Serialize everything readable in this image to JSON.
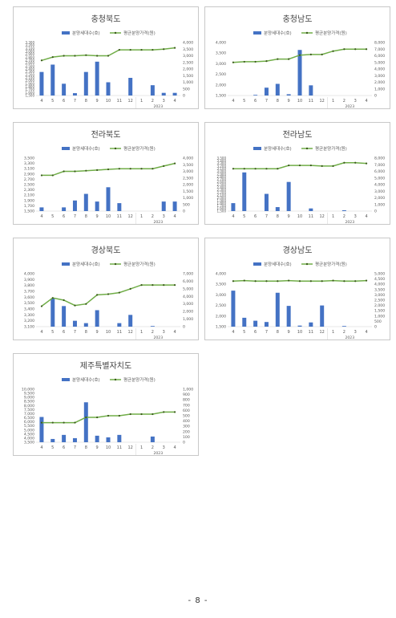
{
  "page": {
    "number_text": "- 8 -"
  },
  "legend": {
    "bar": "분양세대수(호)",
    "line": "평균분양가격(원)"
  },
  "colors": {
    "bar": "#4472c4",
    "line": "#70ad47",
    "marker": "#3a5a1a",
    "text": "#595959",
    "title": "#404040"
  },
  "chart_data": [
    {
      "type": "bar+line",
      "title": "충청북도",
      "categories": [
        "4",
        "5",
        "6",
        "7",
        "8",
        "9",
        "10",
        "11",
        "12",
        "1",
        "2",
        "3",
        "4"
      ],
      "group_label": "2023",
      "y_left": {
        "ylim": [
          1500,
          3300
        ],
        "ticks": [
          "1,500",
          "1,600",
          "1,700",
          "1,800",
          "1,900",
          "2,000",
          "2,100",
          "2,200",
          "2,300",
          "2,400",
          "2,500",
          "2,600",
          "2,700",
          "2,800",
          "2,900",
          "3,000",
          "3,100",
          "3,200",
          "3,300"
        ]
      },
      "y_right": {
        "ylim": [
          0,
          4000
        ],
        "ticks": [
          "0",
          "500",
          "1,000",
          "1,500",
          "2,000",
          "2,500",
          "3,000",
          "3,500",
          "4,000"
        ]
      },
      "series": [
        {
          "name": "분양세대수(호)",
          "axis": "left",
          "values": [
            2300,
            2550,
            1900,
            1580,
            2300,
            2650,
            1950,
            null,
            2100,
            null,
            1850,
            1590,
            1590
          ]
        },
        {
          "name": "평균분양가격(원)",
          "axis": "right",
          "values": [
            2650,
            2900,
            3000,
            3000,
            3050,
            3000,
            3000,
            3450,
            3450,
            3450,
            3450,
            3500,
            3600
          ]
        }
      ]
    },
    {
      "type": "bar+line",
      "title": "충청남도",
      "categories": [
        "4",
        "5",
        "6",
        "7",
        "8",
        "9",
        "10",
        "11",
        "12",
        "1",
        "2",
        "3",
        "4"
      ],
      "group_label": "2023",
      "y_left": {
        "ylim": [
          1500,
          4000
        ],
        "ticks": [
          "1,500",
          "2,000",
          "2,500",
          "3,000",
          "3,500",
          "4,000"
        ]
      },
      "y_right": {
        "ylim": [
          0,
          8000
        ],
        "ticks": [
          "0",
          "1,000",
          "2,000",
          "3,000",
          "4,000",
          "5,000",
          "6,000",
          "7,000",
          "8,000"
        ]
      },
      "series": [
        {
          "name": "분양세대수(호)",
          "axis": "left",
          "values": [
            null,
            null,
            1530,
            1870,
            2050,
            1560,
            3650,
            1980,
            null,
            null,
            null,
            null,
            null
          ]
        },
        {
          "name": "평균분양가격(원)",
          "axis": "right",
          "values": [
            5000,
            5100,
            5100,
            5200,
            5500,
            5500,
            6100,
            6200,
            6200,
            6700,
            7000,
            7000,
            7000
          ]
        }
      ]
    },
    {
      "type": "bar+line",
      "title": "전라북도",
      "categories": [
        "4",
        "5",
        "6",
        "7",
        "8",
        "9",
        "10",
        "11",
        "12",
        "1",
        "2",
        "3",
        "4"
      ],
      "group_label": "2023",
      "y_left": {
        "ylim": [
          1500,
          3500
        ],
        "ticks": [
          "1,500",
          "1,700",
          "1,900",
          "2,100",
          "2,300",
          "2,500",
          "2,700",
          "2,900",
          "3,100",
          "3,300",
          "3,500"
        ]
      },
      "y_right": {
        "ylim": [
          0,
          4000
        ],
        "ticks": [
          "0",
          "500",
          "1,000",
          "1,500",
          "2,000",
          "2,500",
          "3,000",
          "3,500",
          "4,000"
        ]
      },
      "series": [
        {
          "name": "분양세대수(호)",
          "axis": "left",
          "values": [
            1640,
            null,
            1640,
            1900,
            2150,
            1860,
            2400,
            1800,
            null,
            null,
            null,
            1860,
            1860
          ]
        },
        {
          "name": "평균분양가격(원)",
          "axis": "right",
          "values": [
            2700,
            2700,
            3000,
            3000,
            3050,
            3100,
            3150,
            3200,
            3200,
            3200,
            3200,
            3400,
            3600
          ]
        }
      ]
    },
    {
      "type": "bar+line",
      "title": "전라남도",
      "categories": [
        "4",
        "5",
        "6",
        "7",
        "8",
        "9",
        "10",
        "11",
        "12",
        "1",
        "2",
        "3",
        "4"
      ],
      "group_label": "2023",
      "y_left": {
        "ylim": [
          1500,
          3500
        ],
        "ticks": [
          "1,500",
          "1,600",
          "1,700",
          "1,800",
          "1,900",
          "2,000",
          "2,100",
          "2,200",
          "2,300",
          "2,400",
          "2,500",
          "2,600",
          "2,700",
          "2,800",
          "2,900",
          "3,000",
          "3,100",
          "3,200",
          "3,300",
          "3,400",
          "3,500"
        ]
      },
      "y_right": {
        "ylim": [
          0,
          8000
        ],
        "ticks": [
          "0",
          "1,000",
          "2,000",
          "3,000",
          "4,000",
          "5,000",
          "6,000",
          "7,000",
          "8,000"
        ]
      },
      "series": [
        {
          "name": "분양세대수(호)",
          "axis": "left",
          "values": [
            1800,
            2960,
            null,
            2150,
            1650,
            2600,
            null,
            1600,
            null,
            null,
            1530,
            null,
            null
          ]
        },
        {
          "name": "평균분양가격(원)",
          "axis": "right",
          "values": [
            6400,
            6400,
            6400,
            6400,
            6400,
            6900,
            6900,
            6900,
            6800,
            6800,
            7300,
            7300,
            7200
          ]
        }
      ]
    },
    {
      "type": "bar+line",
      "title": "경상북도",
      "categories": [
        "4",
        "5",
        "6",
        "7",
        "8",
        "9",
        "10",
        "11",
        "12",
        "1",
        "2",
        "3",
        "4"
      ],
      "group_label": "2023",
      "y_left": {
        "ylim": [
          3100,
          4000
        ],
        "ticks": [
          "3,100",
          "3,200",
          "3,300",
          "3,400",
          "3,500",
          "3,600",
          "3,700",
          "3,800",
          "3,900",
          "4,000"
        ]
      },
      "y_right": {
        "ylim": [
          0,
          7000
        ],
        "ticks": [
          "0",
          "1,000",
          "2,000",
          "3,000",
          "4,000",
          "5,000",
          "6,000",
          "7,000"
        ]
      },
      "series": [
        {
          "name": "분양세대수(호)",
          "axis": "left",
          "values": [
            null,
            3580,
            3450,
            3200,
            3160,
            3380,
            null,
            3160,
            3300,
            null,
            3110,
            null,
            null
          ]
        },
        {
          "name": "평균분양가격(원)",
          "axis": "right",
          "values": [
            2700,
            3800,
            3500,
            2800,
            3000,
            4200,
            4300,
            4500,
            5000,
            5500,
            5500,
            5500,
            5500
          ]
        }
      ]
    },
    {
      "type": "bar+line",
      "title": "경상남도",
      "categories": [
        "4",
        "5",
        "6",
        "7",
        "8",
        "9",
        "10",
        "11",
        "12",
        "1",
        "2",
        "3",
        "4"
      ],
      "group_label": "2023",
      "y_left": {
        "ylim": [
          1500,
          4000
        ],
        "ticks": [
          "1,500",
          "2,000",
          "2,500",
          "3,000",
          "3,500",
          "4,000"
        ]
      },
      "y_right": {
        "ylim": [
          0,
          5000
        ],
        "ticks": [
          "0",
          "500",
          "1,000",
          "1,500",
          "2,000",
          "2,500",
          "3,000",
          "3,500",
          "4,000",
          "4,500",
          "5,000"
        ]
      },
      "series": [
        {
          "name": "분양세대수(호)",
          "axis": "left",
          "values": [
            3200,
            1920,
            1780,
            1720,
            3100,
            2480,
            1550,
            1700,
            2500,
            null,
            1520,
            null,
            null
          ]
        },
        {
          "name": "평균분양가격(원)",
          "axis": "right",
          "values": [
            4300,
            4350,
            4300,
            4300,
            4300,
            4350,
            4300,
            4300,
            4300,
            4350,
            4300,
            4300,
            4350
          ]
        }
      ]
    },
    {
      "type": "bar+line",
      "title": "제주특별자치도",
      "categories": [
        "4",
        "5",
        "6",
        "7",
        "8",
        "9",
        "10",
        "11",
        "12",
        "1",
        "2",
        "3",
        "4"
      ],
      "group_label": "2023",
      "y_left": {
        "ylim": [
          3500,
          10000
        ],
        "ticks": [
          "3,500",
          "4,000",
          "4,500",
          "5,000",
          "5,500",
          "6,000",
          "6,500",
          "7,000",
          "7,500",
          "8,000",
          "8,500",
          "9,000",
          "9,500",
          "10,000"
        ]
      },
      "y_right": {
        "ylim": [
          0,
          1000
        ],
        "ticks": [
          "0",
          "100",
          "200",
          "300",
          "400",
          "500",
          "600",
          "700",
          "800",
          "900",
          "1,000"
        ]
      },
      "series": [
        {
          "name": "분양세대수(호)",
          "axis": "left",
          "values": [
            6600,
            3900,
            4400,
            4000,
            8400,
            4300,
            4100,
            4400,
            null,
            null,
            4200,
            null,
            null
          ]
        },
        {
          "name": "평균분양가격(원)",
          "axis": "right",
          "values": [
            370,
            370,
            370,
            370,
            470,
            470,
            500,
            500,
            530,
            530,
            530,
            570,
            570
          ]
        }
      ]
    }
  ]
}
